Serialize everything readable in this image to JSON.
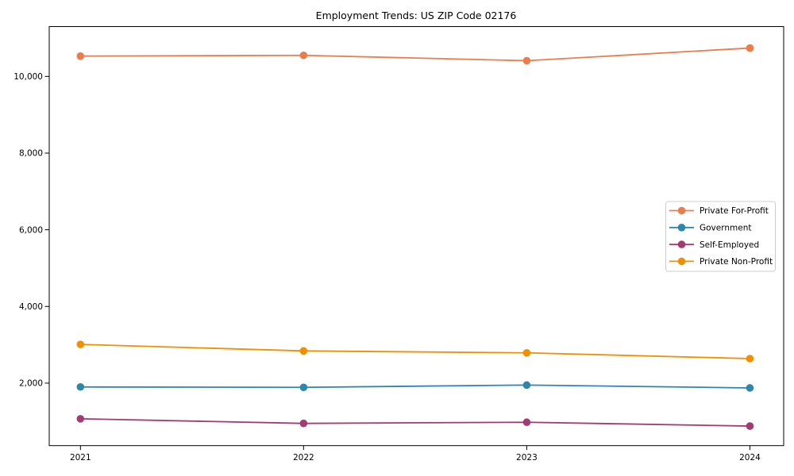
{
  "chart_data": {
    "type": "line",
    "title": "Employment Trends: US ZIP Code 02176",
    "categories": [
      "2021",
      "2022",
      "2023",
      "2024"
    ],
    "series": [
      {
        "name": "Private For-Profit",
        "color": "#EC7C4B",
        "values": [
          10530,
          10550,
          10410,
          10740
        ]
      },
      {
        "name": "Government",
        "color": "#2E86AB",
        "values": [
          1900,
          1890,
          1950,
          1875
        ]
      },
      {
        "name": "Self-Employed",
        "color": "#A23B72",
        "values": [
          1070,
          950,
          980,
          880
        ]
      },
      {
        "name": "Private Non-Profit",
        "color": "#F18F01",
        "values": [
          3010,
          2840,
          2790,
          2640
        ]
      }
    ],
    "y_ticks": [
      {
        "value": 2000,
        "label": "2,000"
      },
      {
        "value": 4000,
        "label": "4,000"
      },
      {
        "value": 6000,
        "label": "6,000"
      },
      {
        "value": 8000,
        "label": "8,000"
      },
      {
        "value": 10000,
        "label": "10,000"
      }
    ],
    "ylim": [
      370,
      11300
    ],
    "grid": false,
    "legend": {
      "position": "center-right",
      "entries": [
        "Private For-Profit",
        "Government",
        "Self-Employed",
        "Private Non-Profit"
      ]
    },
    "colors": {
      "background": "#FFFFFF",
      "axis": "#000000",
      "tick_label": "#000000",
      "legend_border": "#CCCCCC"
    }
  }
}
